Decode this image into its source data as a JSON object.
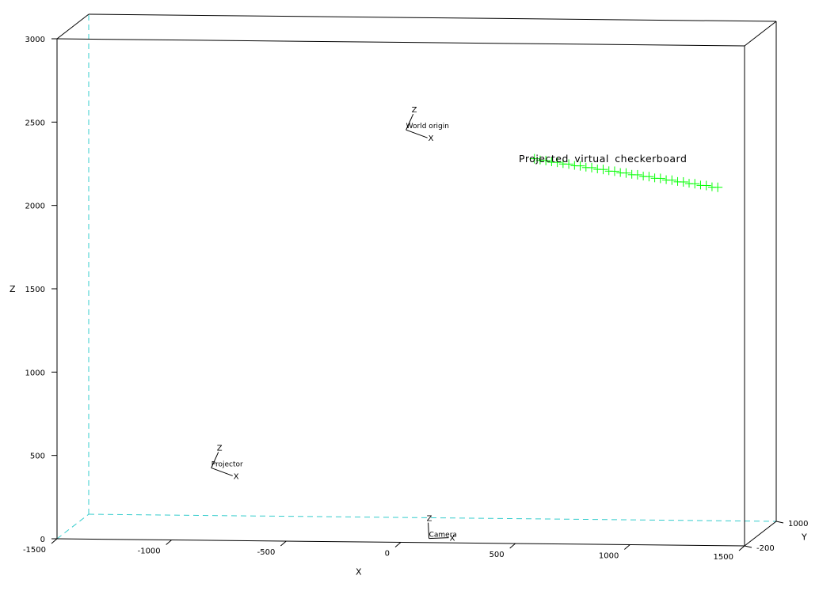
{
  "colors": {
    "box": "#000000",
    "hidden_edges": "#33cccc",
    "points": "#00ff00",
    "frames": "#000000"
  },
  "chart_data": {
    "type": "scatter",
    "dimensions": 3,
    "title": "",
    "xlabel": "X",
    "ylabel": "Y",
    "zlabel": "Z",
    "xlim": [
      -1500,
      1500
    ],
    "ylim": [
      -200,
      1000
    ],
    "zlim": [
      0,
      3000
    ],
    "x_ticks": [
      -1500,
      -1000,
      -500,
      0,
      500,
      1000,
      1500
    ],
    "y_ticks": [
      -200,
      1000
    ],
    "z_ticks": [
      0,
      500,
      1000,
      1500,
      2000,
      2500,
      3000
    ],
    "grid": false,
    "legend": "none",
    "frames": [
      {
        "name": "World origin",
        "x": 0,
        "y": 0,
        "z": 2450,
        "axis_labels": [
          "Z",
          "X"
        ]
      },
      {
        "name": "Projector",
        "x": -850,
        "y": 0,
        "z": 410,
        "axis_labels": [
          "Z",
          "X"
        ]
      },
      {
        "name": "Camera",
        "x": 100,
        "y": 0,
        "z": 0,
        "axis_labels": [
          "Z",
          "X"
        ]
      }
    ],
    "series": [
      {
        "name": "Projected virtual checkerboard",
        "marker": "+",
        "x": [
          560,
          610,
          660,
          710,
          760,
          810,
          860,
          910,
          960,
          1010,
          1060,
          1110,
          1160,
          1210,
          1260,
          1310,
          1360
        ],
        "y": [
          0,
          0,
          0,
          0,
          0,
          0,
          0,
          0,
          0,
          0,
          0,
          0,
          0,
          0,
          0,
          0,
          0
        ],
        "z": [
          2285,
          2275,
          2265,
          2255,
          2245,
          2235,
          2225,
          2215,
          2205,
          2195,
          2185,
          2175,
          2165,
          2155,
          2145,
          2135,
          2125
        ]
      }
    ]
  }
}
